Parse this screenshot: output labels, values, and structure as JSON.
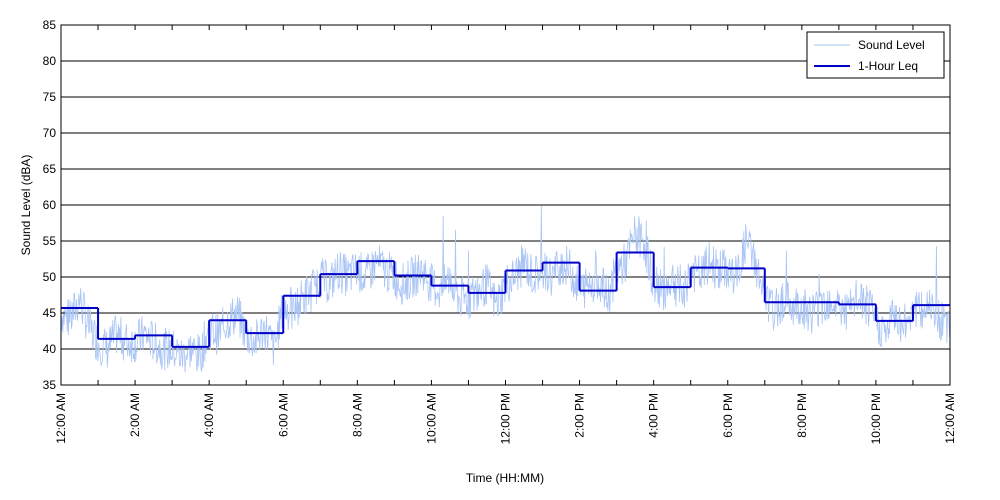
{
  "chart_data": {
    "type": "line",
    "title": "",
    "xlabel": "Time (HH:MM)",
    "ylabel": "Sound Level (dBA)",
    "ylim": [
      35,
      85
    ],
    "yticks": [
      35,
      40,
      45,
      50,
      55,
      60,
      65,
      70,
      75,
      80,
      85
    ],
    "xlim_hours": [
      0,
      24
    ],
    "xticks": [
      {
        "hour": 0,
        "label": "12:00 AM"
      },
      {
        "hour": 2,
        "label": "2:00 AM"
      },
      {
        "hour": 4,
        "label": "4:00 AM"
      },
      {
        "hour": 6,
        "label": "6:00 AM"
      },
      {
        "hour": 8,
        "label": "8:00 AM"
      },
      {
        "hour": 10,
        "label": "10:00 AM"
      },
      {
        "hour": 12,
        "label": "12:00 PM"
      },
      {
        "hour": 14,
        "label": "2:00 PM"
      },
      {
        "hour": 16,
        "label": "4:00 PM"
      },
      {
        "hour": 18,
        "label": "6:00 PM"
      },
      {
        "hour": 20,
        "label": "8:00 PM"
      },
      {
        "hour": 22,
        "label": "10:00 PM"
      },
      {
        "hour": 24,
        "label": "12:00 AM"
      }
    ],
    "grid": "horizontal",
    "legend_position": "top-right",
    "series": [
      {
        "name": "Sound Level",
        "color": "#a9c4f5",
        "style": "noisy-thin",
        "x_hours": [
          0,
          0.25,
          0.5,
          0.75,
          1,
          1.25,
          1.5,
          1.75,
          2,
          2.25,
          2.5,
          2.75,
          3,
          3.25,
          3.5,
          3.75,
          4,
          4.25,
          4.5,
          4.75,
          5,
          5.25,
          5.5,
          5.75,
          6,
          6.25,
          6.5,
          6.75,
          7,
          7.25,
          7.5,
          7.75,
          8,
          8.25,
          8.5,
          8.75,
          9,
          9.25,
          9.5,
          9.75,
          10,
          10.25,
          10.5,
          10.75,
          11,
          11.25,
          11.5,
          11.75,
          12,
          12.25,
          12.5,
          12.75,
          13,
          13.25,
          13.5,
          13.75,
          14,
          14.25,
          14.5,
          14.75,
          15,
          15.25,
          15.5,
          15.75,
          16,
          16.25,
          16.5,
          16.75,
          17,
          17.25,
          17.5,
          17.75,
          18,
          18.25,
          18.5,
          18.75,
          19,
          19.25,
          19.5,
          19.75,
          20,
          20.25,
          20.5,
          20.75,
          21,
          21.25,
          21.5,
          21.75,
          22,
          22.25,
          22.5,
          22.75,
          23,
          23.25,
          23.5,
          23.75,
          24
        ],
        "values": [
          45,
          44,
          47,
          43,
          41,
          40,
          42,
          41,
          41,
          42,
          41,
          40,
          40,
          39,
          40,
          39,
          43,
          42,
          44,
          45,
          42,
          41,
          43,
          40,
          46,
          45,
          47,
          48,
          50,
          49,
          51,
          50,
          51,
          50,
          52,
          51,
          50,
          49,
          50,
          51,
          49,
          48,
          50,
          47,
          47,
          48,
          49,
          46,
          49,
          50,
          52,
          50,
          51,
          50,
          52,
          51,
          48,
          49,
          50,
          47,
          51,
          52,
          56,
          55,
          49,
          48,
          50,
          47,
          51,
          50,
          52,
          51,
          51,
          50,
          55,
          52,
          47,
          45,
          47,
          46,
          46,
          45,
          46,
          47,
          46,
          45,
          47,
          46,
          44,
          42,
          45,
          43,
          46,
          45,
          47,
          44,
          42
        ]
      },
      {
        "name": "1-Hour Leq",
        "color": "#0000c8",
        "style": "step",
        "x_hours": [
          0,
          1,
          2,
          3,
          4,
          5,
          6,
          7,
          8,
          9,
          10,
          11,
          12,
          13,
          14,
          15,
          16,
          17,
          18,
          19,
          20,
          21,
          22,
          23
        ],
        "values": [
          45.7,
          41.4,
          41.9,
          40.3,
          44.0,
          42.2,
          47.4,
          50.4,
          52.2,
          50.2,
          48.8,
          47.8,
          50.9,
          52.0,
          48.1,
          53.4,
          48.6,
          51.3,
          51.2,
          46.5,
          46.5,
          46.2,
          43.9,
          46.1
        ]
      }
    ]
  }
}
